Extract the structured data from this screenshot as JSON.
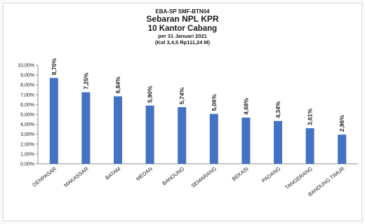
{
  "header": {
    "code": "EBA-SP SMF-BTN04",
    "title": "Sebaran NPL KPR",
    "subtitle": "10 Kantor Cabang",
    "date_line": "per 31 Januari 2021",
    "note_line": "(Kol 3,4,5 Rp111,24 M)"
  },
  "colors": {
    "bar": "#4472C4",
    "axis": "#8c8c8c",
    "grid": "#e6e6e6",
    "text": "#222222"
  },
  "chart_data": {
    "type": "bar",
    "title": "Sebaran NPL KPR",
    "categories": [
      "DENPASAR",
      "MAKASSAR",
      "BATAM",
      "MEDAN",
      "BANDUNG",
      "SEMARANG",
      "BEKASI",
      "PADANG",
      "TANGERANG",
      "BANDUNG TIMUR"
    ],
    "values": [
      8.7,
      7.25,
      6.84,
      5.9,
      5.74,
      5.06,
      4.68,
      4.34,
      3.61,
      2.96
    ],
    "data_labels": [
      "8,70%",
      "7,25%",
      "6,84%",
      "5,90%",
      "5,74%",
      "5,06%",
      "4,68%",
      "4,34%",
      "3,61%",
      "2,96%"
    ],
    "y_tick_labels": [
      "0,00%",
      "1,00%",
      "2,00%",
      "3,00%",
      "4,00%",
      "5,00%",
      "6,00%",
      "7,00%",
      "8,00%",
      "9,00%",
      "10,00%"
    ],
    "ylim": [
      0,
      10
    ],
    "y_step": 1,
    "legend": "none",
    "grid": false
  }
}
